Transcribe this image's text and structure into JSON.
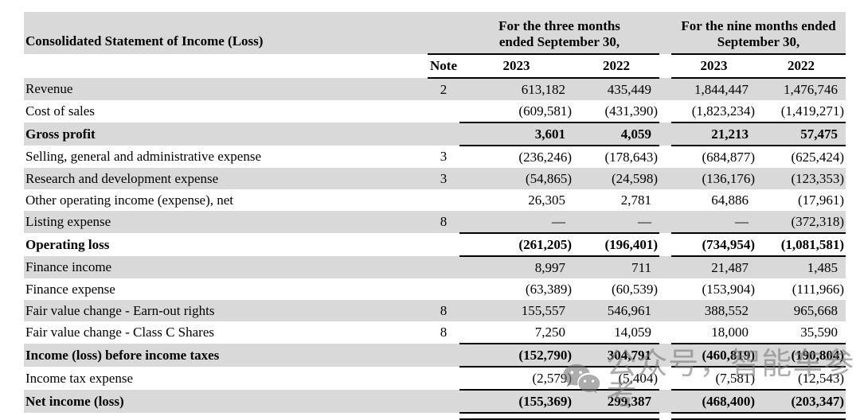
{
  "colors": {
    "row_shade": "#d9d9d9",
    "rule": "#000000",
    "watermark_gray": "#7a7a7a"
  },
  "table": {
    "title": "Consolidated Statement of Income (Loss)",
    "col_groups": [
      {
        "line1": "For the three months",
        "line2": "ended September 30,"
      },
      {
        "line1": "For the nine months ended",
        "line2": "September 30,"
      }
    ],
    "column_headers": {
      "note": "Note",
      "tm_2023": "2023",
      "tm_2022": "2022",
      "nm_2023": "2023",
      "nm_2022": "2022"
    },
    "rows": [
      {
        "label": "Revenue",
        "note": "2",
        "values": [
          "613,182",
          "435,449",
          "1,844,447",
          "1,476,746"
        ],
        "bold": false,
        "shaded": true,
        "rule_below": false
      },
      {
        "label": "Cost of sales",
        "note": "",
        "values": [
          "(609,581)",
          "(431,390)",
          "(1,823,234)",
          "(1,419,271)"
        ],
        "bold": false,
        "shaded": false,
        "rule_below": true
      },
      {
        "label": "Gross profit",
        "note": "",
        "values": [
          "3,601",
          "4,059",
          "21,213",
          "57,475"
        ],
        "bold": true,
        "shaded": true,
        "rule_below": true
      },
      {
        "label": "Selling, general and administrative expense",
        "note": "3",
        "values": [
          "(236,246)",
          "(178,643)",
          "(684,877)",
          "(625,424)"
        ],
        "bold": false,
        "shaded": false,
        "rule_below": false
      },
      {
        "label": "Research and development expense",
        "note": "3",
        "values": [
          "(54,865)",
          "(24,598)",
          "(136,176)",
          "(123,353)"
        ],
        "bold": false,
        "shaded": true,
        "rule_below": false
      },
      {
        "label": "Other operating income (expense), net",
        "note": "",
        "values": [
          "26,305",
          "2,781",
          "64,886",
          "(17,961)"
        ],
        "bold": false,
        "shaded": false,
        "rule_below": false
      },
      {
        "label": "Listing expense",
        "note": "8",
        "values": [
          "—",
          "—",
          "—",
          "(372,318)"
        ],
        "bold": false,
        "shaded": true,
        "rule_below": true
      },
      {
        "label": "Operating loss",
        "note": "",
        "values": [
          "(261,205)",
          "(196,401)",
          "(734,954)",
          "(1,081,581)"
        ],
        "bold": true,
        "shaded": false,
        "rule_below": true
      },
      {
        "label": "Finance income",
        "note": "",
        "values": [
          "8,997",
          "711",
          "21,487",
          "1,485"
        ],
        "bold": false,
        "shaded": true,
        "rule_below": false
      },
      {
        "label": "Finance expense",
        "note": "",
        "values": [
          "(63,389)",
          "(60,539)",
          "(153,904)",
          "(111,966)"
        ],
        "bold": false,
        "shaded": false,
        "rule_below": false
      },
      {
        "label": "Fair value change - Earn-out rights",
        "note": "8",
        "values": [
          "155,557",
          "546,961",
          "388,552",
          "965,668"
        ],
        "bold": false,
        "shaded": true,
        "rule_below": false
      },
      {
        "label": "Fair value change - Class C Shares",
        "note": "8",
        "values": [
          "7,250",
          "14,059",
          "18,000",
          "35,590"
        ],
        "bold": false,
        "shaded": false,
        "rule_below": true
      },
      {
        "label": "Income (loss) before income taxes",
        "note": "",
        "values": [
          "(152,790)",
          "304,791",
          "(460,819)",
          "(190,804)"
        ],
        "bold": true,
        "shaded": true,
        "rule_below": true
      },
      {
        "label": "Income tax expense",
        "note": "",
        "values": [
          "(2,579)",
          "(5,404)",
          "(7,581)",
          "(12,543)"
        ],
        "bold": false,
        "shaded": false,
        "rule_below": true
      },
      {
        "label": "Net income (loss)",
        "note": "",
        "values": [
          "(155,369)",
          "299,387",
          "(468,400)",
          "(203,347)"
        ],
        "bold": true,
        "shaded": true,
        "rule_below": true,
        "double_rule": true
      }
    ]
  },
  "watermark": {
    "icon": "wechat-icon",
    "text": "公众号，智能车参考"
  }
}
